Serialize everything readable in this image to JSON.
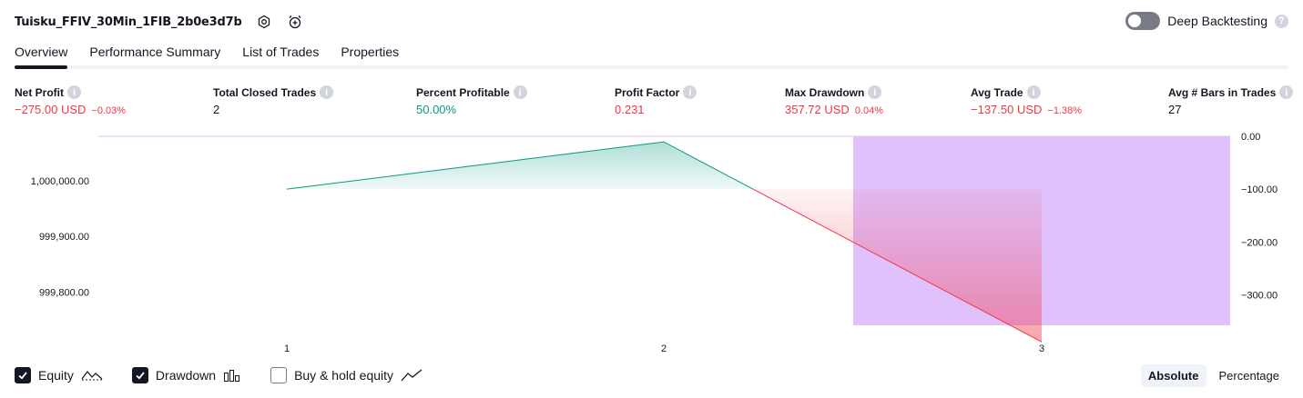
{
  "header": {
    "strategy_name": "Tuisku_FFIV_30Min_1FIB_2b0e3d7b",
    "settings_icon": "settings-icon",
    "alert_icon": "alarm-clock-plus-icon"
  },
  "deep_backtesting": {
    "label": "Deep Backtesting",
    "enabled": false,
    "help": "?"
  },
  "tabs": [
    {
      "label": "Overview",
      "active": true
    },
    {
      "label": "Performance Summary",
      "active": false
    },
    {
      "label": "List of Trades",
      "active": false
    },
    {
      "label": "Properties",
      "active": false
    }
  ],
  "metrics": {
    "net_profit": {
      "label": "Net Profit",
      "value": "−275.00 USD",
      "pct": "−0.03%"
    },
    "total_closed_trades": {
      "label": "Total Closed Trades",
      "value": "2"
    },
    "percent_profitable": {
      "label": "Percent Profitable",
      "value": "50.00%"
    },
    "profit_factor": {
      "label": "Profit Factor",
      "value": "0.231"
    },
    "max_drawdown": {
      "label": "Max Drawdown",
      "value": "357.72 USD",
      "pct": "0.04%"
    },
    "avg_trade": {
      "label": "Avg Trade",
      "value": "−137.50 USD",
      "pct": "−1.38%"
    },
    "avg_bars": {
      "label": "Avg # Bars in Trades",
      "value": "27"
    },
    "info_glyph": "i"
  },
  "colors": {
    "profit": "#089981",
    "loss": "#f23645",
    "drawdown": "#e1c1fb",
    "text": "#131722",
    "muted": "#787b86"
  },
  "chart_data": {
    "type": "area",
    "x": [
      1,
      2,
      3
    ],
    "x_tick_labels": [
      "1",
      "2",
      "3"
    ],
    "equity": {
      "values": [
        999985,
        1000070,
        999710
      ]
    },
    "equity_axis": {
      "range": [
        999740,
        1000080
      ],
      "tick_labels": [
        "1,000,000.00",
        "999,900.00",
        "999,800.00"
      ],
      "ticks": [
        1000000,
        999900,
        999800
      ]
    },
    "drawdown": {
      "values": [
        0,
        0,
        -357.72
      ]
    },
    "drawdown_axis": {
      "range": [
        -357.72,
        0
      ],
      "tick_labels": [
        "0.00",
        "−100.00",
        "−200.00",
        "−300.00"
      ],
      "ticks": [
        0,
        -100,
        -200,
        -300
      ]
    }
  },
  "legend": [
    {
      "label": "Equity",
      "checked": true,
      "icon": "equity-line-icon"
    },
    {
      "label": "Drawdown",
      "checked": true,
      "icon": "drawdown-bars-icon"
    },
    {
      "label": "Buy & hold equity",
      "checked": false,
      "icon": "buy-hold-line-icon"
    }
  ],
  "modes": [
    {
      "label": "Absolute",
      "active": true
    },
    {
      "label": "Percentage",
      "active": false
    }
  ]
}
